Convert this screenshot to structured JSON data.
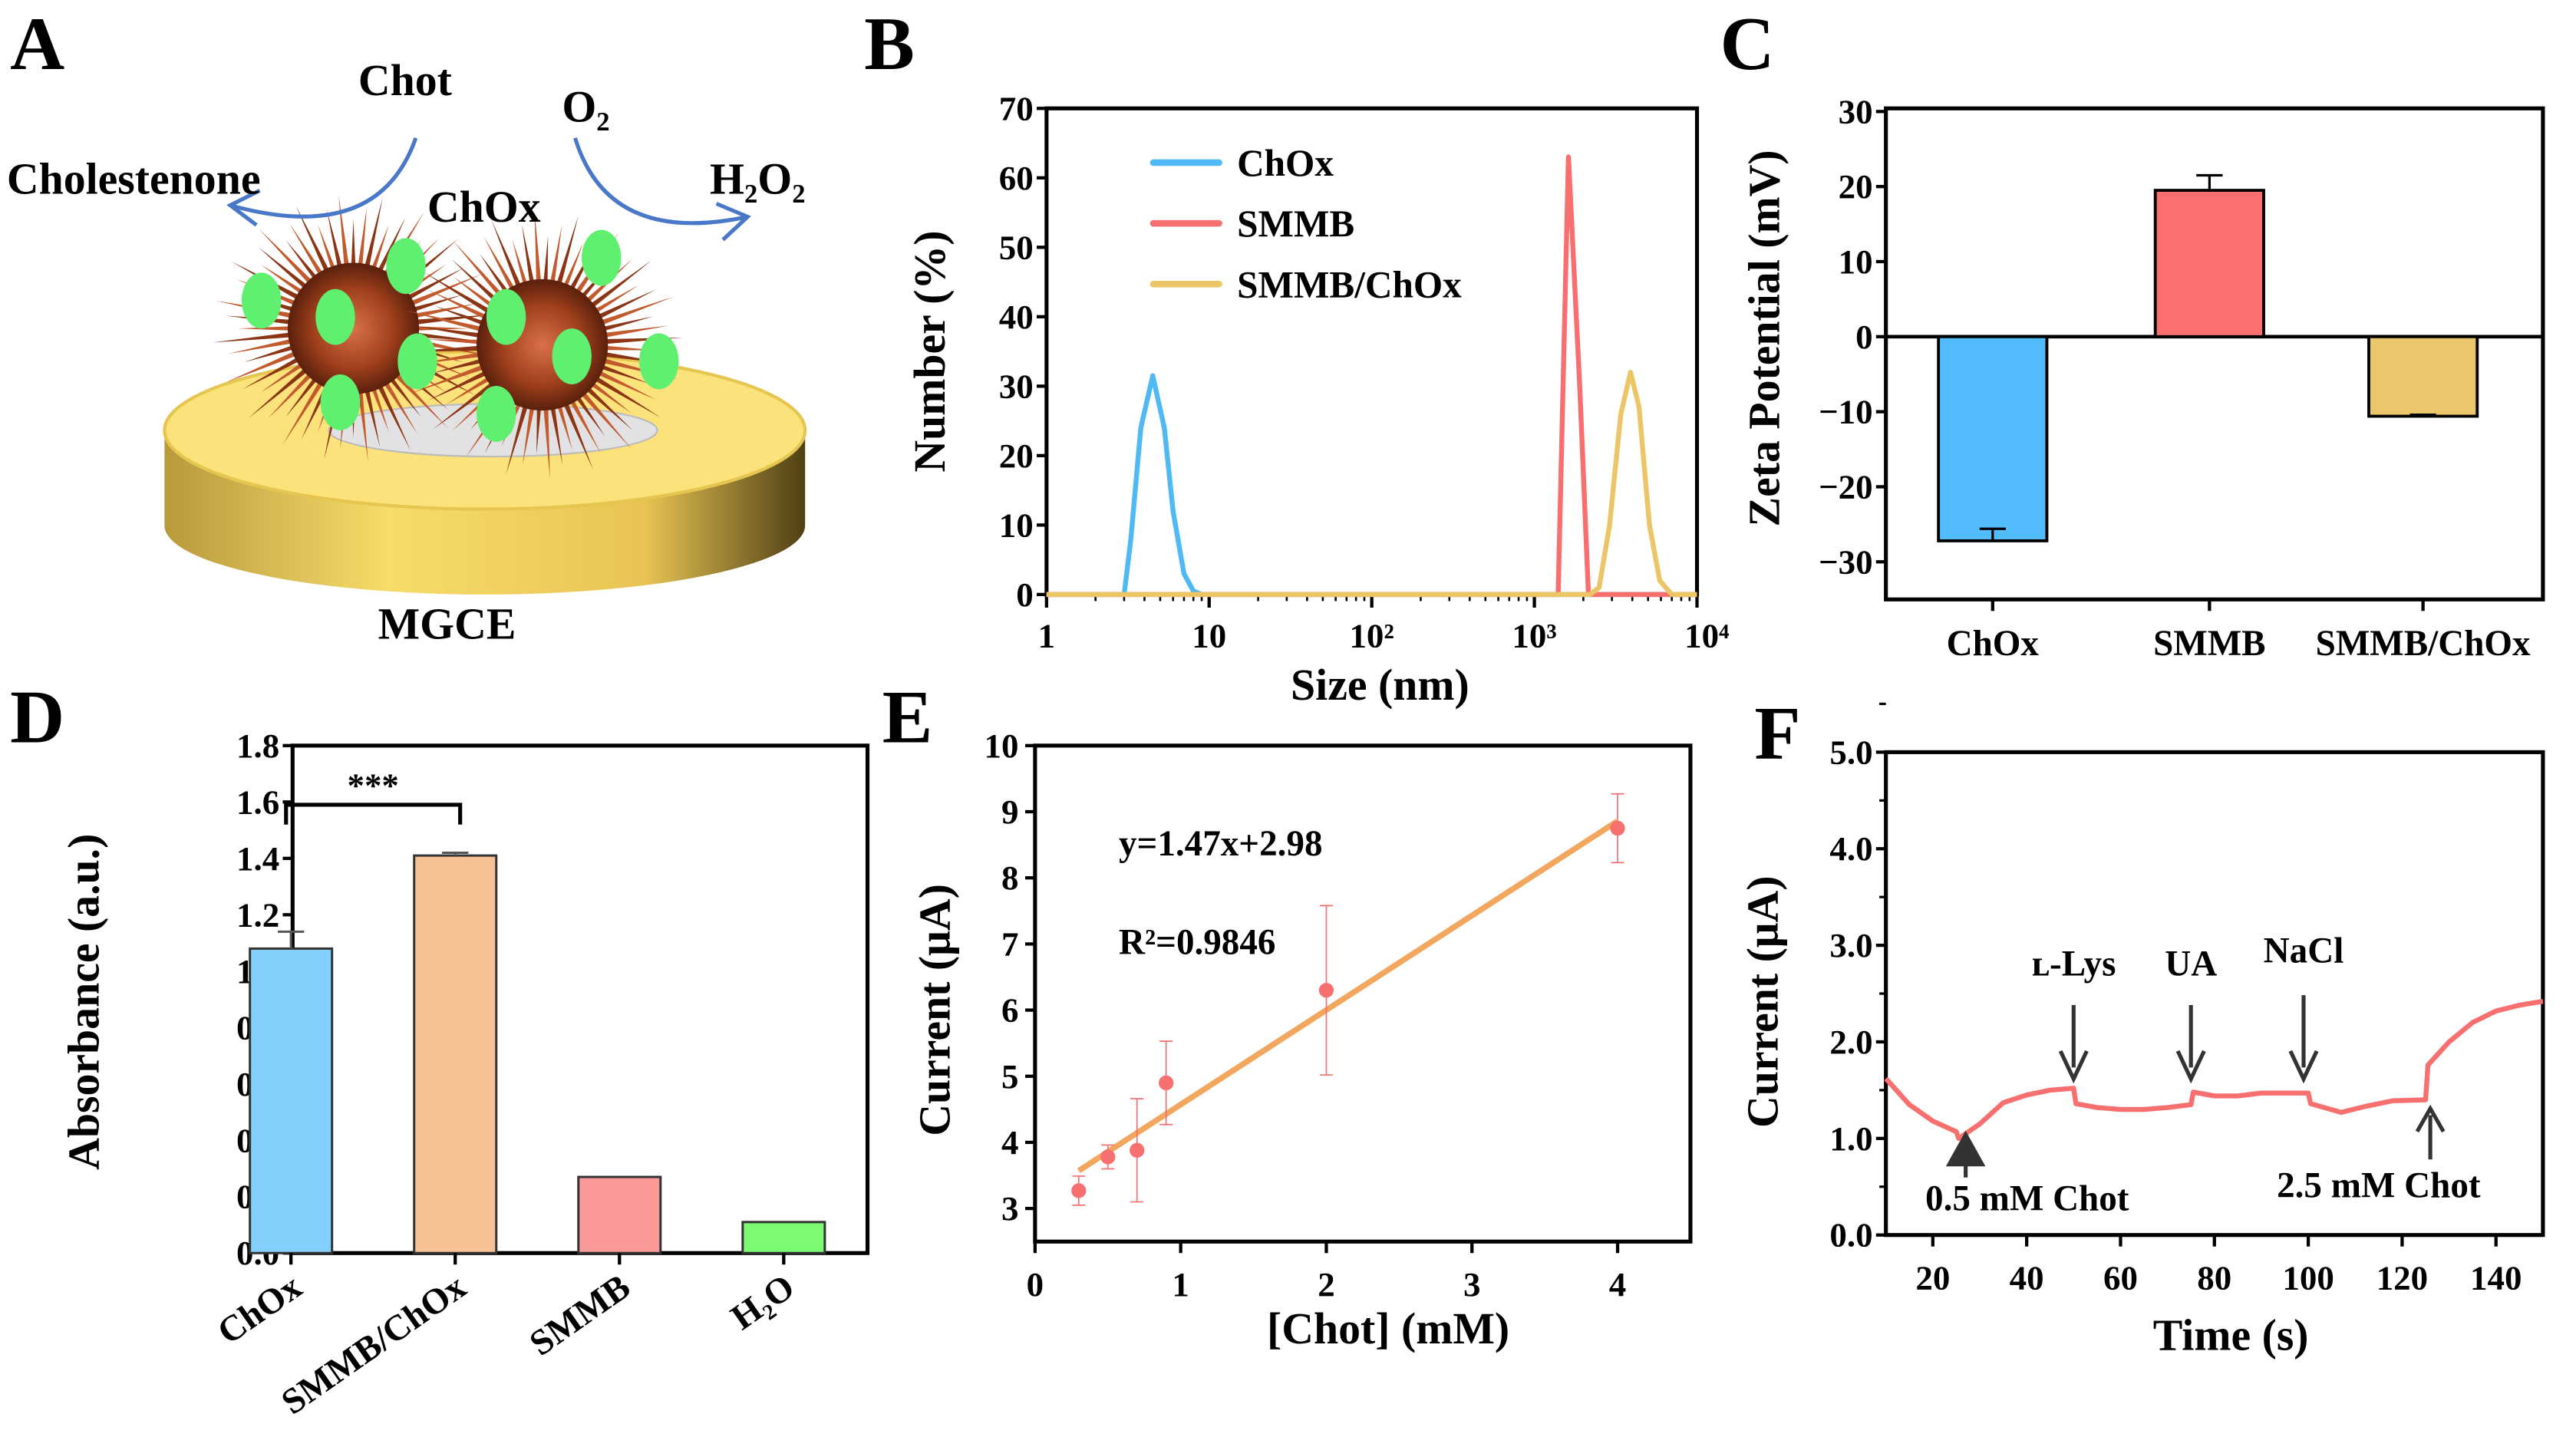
{
  "panels": {
    "a": "A",
    "b": "B",
    "c": "C",
    "d": "D",
    "e": "E",
    "f": "F"
  },
  "diagram": {
    "substrate": "Chot",
    "product": "Cholestenone",
    "enzyme": "ChOx",
    "oxygen": "O₂",
    "peroxide": "H₂O₂",
    "electrode": "MGCE",
    "colors": {
      "gold": "#f3d25e",
      "spike": "#a0401c",
      "enzyme": "#5ef06e",
      "arrow": "#4a78c8"
    }
  },
  "chart_data": [
    {
      "id": "B",
      "type": "line",
      "xscale": "log",
      "xlabel": "Size (nm)",
      "ylabel": "Number (%)",
      "xlim": [
        1,
        10000
      ],
      "ylim": [
        0,
        70
      ],
      "xticks": [
        1,
        10,
        100,
        1000,
        10000
      ],
      "xtick_labels": [
        "1",
        "10",
        "10²",
        "10³",
        "10⁴"
      ],
      "yticks": [
        0,
        10,
        20,
        30,
        40,
        50,
        60,
        70
      ],
      "legend": "top-left",
      "series": [
        {
          "name": "ChOx",
          "color": "#4fb9f5",
          "x": [
            1,
            3,
            3.3,
            3.8,
            4.5,
            5.3,
            6,
            7,
            8,
            9,
            10000
          ],
          "y": [
            0,
            0,
            8,
            24,
            31.5,
            24,
            12,
            3,
            0.5,
            0,
            0
          ]
        },
        {
          "name": "SMMB",
          "color": "#f76f6f",
          "x": [
            1,
            1400,
            1620,
            1900,
            2150,
            10000
          ],
          "y": [
            0,
            0,
            63,
            30,
            0,
            0
          ]
        },
        {
          "name": "SMMB/ChOx",
          "color": "#ebc566",
          "x": [
            1,
            2200,
            2500,
            2900,
            3400,
            3900,
            4400,
            5100,
            5900,
            7000,
            10000
          ],
          "y": [
            0,
            0,
            1,
            10,
            26,
            32,
            27,
            10,
            2,
            0,
            0
          ]
        }
      ]
    },
    {
      "id": "C",
      "type": "bar",
      "ylabel": "Zeta Potential (mV)",
      "xlabel": "",
      "ylim": [
        -35,
        30
      ],
      "yticks": [
        30,
        20,
        10,
        0,
        -10,
        -20,
        -30
      ],
      "ytick_labels": [
        "30",
        "20",
        "10",
        "0",
        "−10",
        "−20",
        "−30"
      ],
      "categories": [
        "ChOx",
        "SMMB",
        "SMMB/ChOx"
      ],
      "values": [
        -27.2,
        19.5,
        -10.6
      ],
      "errors": [
        1.6,
        2.0,
        0.2
      ],
      "colors": [
        "#52bcfd",
        "#fb706e",
        "#ebc76c"
      ]
    },
    {
      "id": "D",
      "type": "bar",
      "ylabel": "Absorbance (a.u.)",
      "xlabel": "",
      "ylim": [
        0,
        1.8
      ],
      "yticks": [
        0,
        0.2,
        0.4,
        0.6,
        0.8,
        1.0,
        1.2,
        1.4,
        1.6,
        1.8
      ],
      "ytick_labels": [
        "0.0",
        "0.2",
        "0.4",
        "0.6",
        "0.8",
        "1.0",
        "1.2",
        "1.4",
        "1.6",
        "1.8"
      ],
      "categories": [
        "ChOx",
        "SMMB/ChOx",
        "SMMB",
        "H₂O"
      ],
      "values": [
        1.08,
        1.41,
        0.27,
        0.11
      ],
      "errors": [
        0.06,
        0.01,
        0.0,
        0.0
      ],
      "colors": [
        "#84d0fd",
        "#f6c195",
        "#fa9a98",
        "#7cfb72"
      ],
      "significance": {
        "label": "***",
        "between": [
          0,
          1
        ]
      }
    },
    {
      "id": "E",
      "type": "scatter",
      "xlabel": "[Chot] (mM)",
      "ylabel": "Current (μA)",
      "xlim": [
        0,
        4.5
      ],
      "ylim": [
        2.5,
        10
      ],
      "xticks": [
        0,
        1,
        2,
        3,
        4
      ],
      "yticks": [
        3,
        4,
        5,
        6,
        7,
        8,
        9,
        10
      ],
      "x": [
        0.3,
        0.5,
        0.7,
        0.9,
        2,
        4
      ],
      "y": [
        3.27,
        3.78,
        3.88,
        4.9,
        6.3,
        8.75
      ],
      "errors": [
        0.22,
        0.18,
        0.78,
        0.63,
        1.28,
        0.52
      ],
      "point_color": "#f76f6f",
      "fit_color": "#f3a65e",
      "fit": {
        "slope": 1.47,
        "intercept": 2.98,
        "x_range": [
          0.3,
          4
        ]
      },
      "annotations": [
        "y=1.47x+2.98",
        "R²=0.9846"
      ]
    },
    {
      "id": "F",
      "type": "line",
      "xlabel": "Time (s)",
      "ylabel": "Current (μA)",
      "xlim": [
        10,
        150
      ],
      "ylim": [
        0,
        5
      ],
      "xticks": [
        20,
        40,
        60,
        80,
        100,
        120,
        140
      ],
      "yticks": [
        0,
        1,
        2,
        3,
        4,
        5
      ],
      "ytick_labels": [
        "0.0",
        "1.0",
        "2.0",
        "3.0",
        "4.0",
        "5.0"
      ],
      "color": "#f76f6f",
      "x": [
        10,
        15,
        20,
        25,
        25.5,
        30,
        35,
        40,
        45,
        50,
        50.5,
        55,
        60,
        65,
        70,
        75,
        75.5,
        80,
        85,
        90,
        100,
        100.5,
        107,
        112,
        118,
        125,
        125.5,
        130,
        135,
        140,
        145,
        150
      ],
      "y": [
        1.62,
        1.35,
        1.18,
        1.07,
        1.0,
        1.15,
        1.37,
        1.45,
        1.5,
        1.52,
        1.36,
        1.32,
        1.3,
        1.3,
        1.32,
        1.35,
        1.48,
        1.44,
        1.44,
        1.47,
        1.47,
        1.36,
        1.27,
        1.33,
        1.39,
        1.4,
        1.76,
        2.0,
        2.2,
        2.32,
        2.38,
        2.42
      ],
      "events": [
        {
          "label": "0.5 mM Chot",
          "t": 27,
          "direction": "up"
        },
        {
          "label": "ʟ-Lys",
          "t": 50,
          "direction": "down"
        },
        {
          "label": "UA",
          "t": 75,
          "direction": "down"
        },
        {
          "label": "NaCl",
          "t": 99,
          "direction": "down"
        },
        {
          "label": "2.5 mM Chot",
          "t": 126,
          "direction": "up"
        }
      ]
    }
  ]
}
